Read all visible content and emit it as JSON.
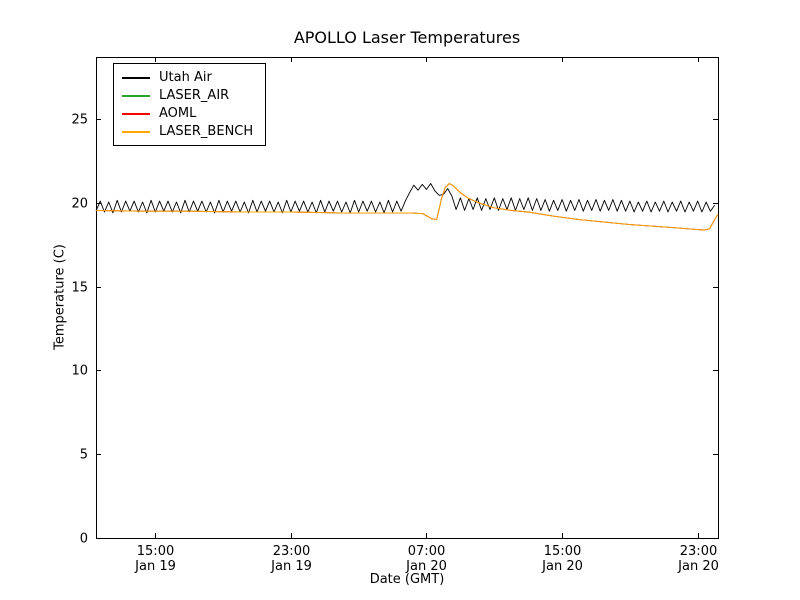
{
  "chart_data": {
    "type": "line",
    "title": "APOLLO Laser Temperatures",
    "xlabel": "Date (GMT)",
    "ylabel": "Temperature (C)",
    "grid": false,
    "legend_position": "upper left",
    "x_unit": "hours since Jan 19 00:00 GMT",
    "xlim": [
      11.5,
      48.2
    ],
    "ylim": [
      0,
      28.7
    ],
    "y_ticks": [
      0,
      5,
      10,
      15,
      20,
      25
    ],
    "x_ticks": [
      {
        "t": 15,
        "time": "15:00",
        "date": "Jan 19"
      },
      {
        "t": 23,
        "time": "23:00",
        "date": "Jan 19"
      },
      {
        "t": 31,
        "time": "07:00",
        "date": "Jan 20"
      },
      {
        "t": 39,
        "time": "15:00",
        "date": "Jan 20"
      },
      {
        "t": 47,
        "time": "23:00",
        "date": "Jan 20"
      }
    ],
    "series": [
      {
        "name": "Utah Air",
        "color": "#000000",
        "x0": 11.5,
        "dx": 0.25,
        "y": [
          19.5,
          20.1,
          19.45,
          20.05,
          19.4,
          20.15,
          19.45,
          20.1,
          19.5,
          20.1,
          19.45,
          20.05,
          19.4,
          20.15,
          19.45,
          20.1,
          19.5,
          20.1,
          19.45,
          20.05,
          19.4,
          20.15,
          19.45,
          20.1,
          19.5,
          20.1,
          19.45,
          20.05,
          19.4,
          20.15,
          19.45,
          20.1,
          19.5,
          20.1,
          19.45,
          20.05,
          19.4,
          20.15,
          19.45,
          20.1,
          19.5,
          20.1,
          19.45,
          20.05,
          19.4,
          20.15,
          19.45,
          20.1,
          19.5,
          20.1,
          19.45,
          20.05,
          19.4,
          20.15,
          19.45,
          20.1,
          19.5,
          20.1,
          19.45,
          20.05,
          19.4,
          20.15,
          19.45,
          20.1,
          19.5,
          20.1,
          19.45,
          20.05,
          19.4,
          20.15,
          19.45,
          20.1,
          19.5,
          20.1,
          20.6,
          21.05,
          20.75,
          21.1,
          20.8,
          21.15,
          20.7,
          20.45,
          20.5,
          20.85,
          20.4,
          19.6,
          20.3,
          19.55,
          20.25,
          19.6,
          20.3,
          19.55,
          20.25,
          19.6,
          20.3,
          19.55,
          20.25,
          19.6,
          20.3,
          19.55,
          20.25,
          19.6,
          20.3,
          19.55,
          20.25,
          19.55,
          20.2,
          19.5,
          20.15,
          19.55,
          20.2,
          19.5,
          20.15,
          19.55,
          20.2,
          19.5,
          20.15,
          19.55,
          20.2,
          19.5,
          20.15,
          19.55,
          20.2,
          19.5,
          20.15,
          19.5,
          20.1,
          19.45,
          20.05,
          19.5,
          20.1,
          19.45,
          20.05,
          19.5,
          20.1,
          19.45,
          20.05,
          19.5,
          20.1,
          19.45,
          20.05,
          19.5,
          20.1,
          19.45,
          20.05,
          19.5,
          19.85
        ]
      },
      {
        "name": "LASER_AIR",
        "color": "#2ca02c",
        "x": [
          11.5,
          14.0,
          17.0,
          20.0,
          23.0,
          26.0,
          28.5,
          30.0,
          30.8,
          31.3,
          31.6,
          31.9,
          32.1,
          32.35,
          32.6,
          33.0,
          33.5,
          34.2,
          35.0,
          36.0,
          37.0,
          38.5,
          40.0,
          41.5,
          43.0,
          44.5,
          45.8,
          46.8,
          47.4,
          47.7,
          48.0,
          48.2
        ],
        "y": [
          19.55,
          19.5,
          19.5,
          19.45,
          19.45,
          19.4,
          19.4,
          19.4,
          19.35,
          19.05,
          19.0,
          20.3,
          20.9,
          21.15,
          21.0,
          20.6,
          20.25,
          19.95,
          19.7,
          19.55,
          19.45,
          19.2,
          19.0,
          18.85,
          18.7,
          18.6,
          18.5,
          18.42,
          18.38,
          18.45,
          19.0,
          19.3
        ]
      },
      {
        "name": "AOML",
        "color": "#ff0000",
        "x": [
          11.5,
          14.0,
          17.0,
          20.0,
          23.0,
          26.0,
          28.5,
          30.0,
          30.8,
          31.3,
          31.6,
          31.9,
          32.1,
          32.35,
          32.6,
          33.0,
          33.5,
          34.2,
          35.0,
          36.0,
          37.0,
          38.5,
          40.0,
          41.5,
          43.0,
          44.5,
          45.8,
          46.8,
          47.4,
          47.7,
          48.0,
          48.2
        ],
        "y": [
          19.55,
          19.5,
          19.5,
          19.45,
          19.45,
          19.4,
          19.4,
          19.4,
          19.35,
          19.05,
          19.0,
          20.3,
          20.9,
          21.15,
          21.0,
          20.6,
          20.25,
          19.95,
          19.7,
          19.55,
          19.45,
          19.2,
          19.0,
          18.85,
          18.7,
          18.6,
          18.5,
          18.42,
          18.38,
          18.45,
          19.0,
          19.3
        ]
      },
      {
        "name": "LASER_BENCH",
        "color": "#ffa500",
        "x": [
          11.5,
          14.0,
          17.0,
          20.0,
          23.0,
          26.0,
          28.5,
          30.0,
          30.8,
          31.3,
          31.6,
          31.9,
          32.1,
          32.35,
          32.6,
          33.0,
          33.5,
          34.2,
          35.0,
          36.0,
          37.0,
          38.5,
          40.0,
          41.5,
          43.0,
          44.5,
          45.8,
          46.8,
          47.4,
          47.7,
          48.0,
          48.2
        ],
        "y": [
          19.55,
          19.5,
          19.5,
          19.45,
          19.45,
          19.4,
          19.4,
          19.4,
          19.35,
          19.05,
          19.0,
          20.3,
          20.9,
          21.15,
          21.0,
          20.6,
          20.25,
          19.95,
          19.7,
          19.55,
          19.45,
          19.2,
          19.0,
          18.85,
          18.7,
          18.6,
          18.5,
          18.42,
          18.38,
          18.45,
          19.0,
          19.3
        ]
      }
    ]
  }
}
